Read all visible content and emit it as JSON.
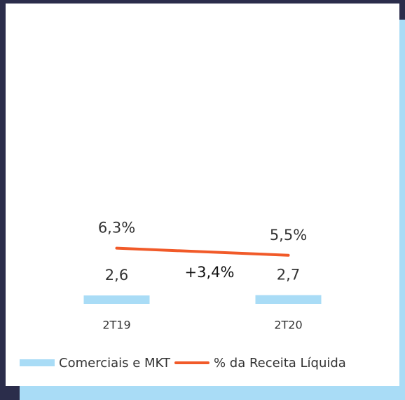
{
  "chart_data": {
    "type": "bar_line",
    "categories": [
      "2T19",
      "2T20"
    ],
    "series": [
      {
        "name": "Comerciais e MKT",
        "type": "bar",
        "color": "#a9dcf6",
        "values": [
          2.6,
          2.7
        ],
        "value_labels": [
          "2,6",
          "2,7"
        ]
      },
      {
        "name": "% da Receita Líquida",
        "type": "line",
        "axis": "y2",
        "color": "#f15a29",
        "values": [
          6.3,
          5.5
        ],
        "value_labels": [
          "6,3%",
          "5,5%"
        ]
      }
    ],
    "annotations": [
      "+3,4%"
    ],
    "ylim": [
      0,
      60
    ],
    "y2lim": [
      0,
      22
    ],
    "legend": "bottom"
  }
}
